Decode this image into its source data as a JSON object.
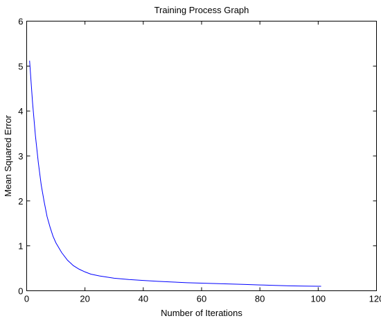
{
  "chart_data": {
    "type": "line",
    "title": "Training Process Graph",
    "xlabel": "Number of Iterations",
    "ylabel": "Mean Squared Error",
    "xlim": [
      0,
      120
    ],
    "ylim": [
      0,
      6
    ],
    "xticks": [
      0,
      20,
      40,
      60,
      80,
      100,
      120
    ],
    "yticks": [
      0,
      1,
      2,
      3,
      4,
      5,
      6
    ],
    "grid": false,
    "colors": {
      "series": "#0000ff",
      "axes": "#000000",
      "background": "#ffffff"
    },
    "series": [
      {
        "x": [
          1,
          2,
          3,
          4,
          5,
          6,
          7,
          8,
          9,
          10,
          12,
          14,
          16,
          18,
          20,
          22,
          25,
          30,
          35,
          40,
          45,
          50,
          55,
          60,
          65,
          70,
          75,
          80,
          85,
          90,
          95,
          100,
          101
        ],
        "y": [
          5.12,
          4.2,
          3.45,
          2.85,
          2.35,
          1.98,
          1.65,
          1.42,
          1.22,
          1.07,
          0.85,
          0.68,
          0.56,
          0.48,
          0.42,
          0.37,
          0.33,
          0.28,
          0.25,
          0.23,
          0.21,
          0.195,
          0.18,
          0.17,
          0.16,
          0.15,
          0.14,
          0.13,
          0.12,
          0.11,
          0.105,
          0.1,
          0.1
        ]
      }
    ]
  }
}
